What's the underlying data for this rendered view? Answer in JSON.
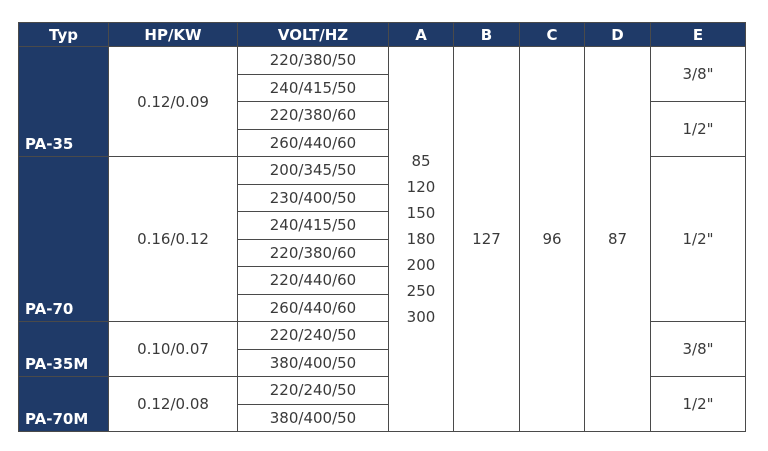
{
  "table": {
    "header": [
      "Typ",
      "HP/KW",
      "VOLT/HZ",
      "A",
      "B",
      "C",
      "D",
      "E"
    ],
    "groups": [
      {
        "typ": "PA-35",
        "hp_kw": "0.12/0.09",
        "volt_hz": [
          "220/380/50",
          "240/415/50",
          "220/380/60",
          "260/440/60"
        ],
        "e": [
          "3/8\"",
          "1/2\""
        ]
      },
      {
        "typ": "PA-70",
        "hp_kw": "0.16/0.12",
        "volt_hz": [
          "200/345/50",
          "230/400/50",
          "240/415/50",
          "220/380/60",
          "220/440/60",
          "260/440/60"
        ],
        "e": [
          "1/2\""
        ]
      },
      {
        "typ": "PA-35M",
        "hp_kw": "0.10/0.07",
        "volt_hz": [
          "220/240/50",
          "380/400/50"
        ],
        "e": [
          "3/8\""
        ]
      },
      {
        "typ": "PA-70M",
        "hp_kw": "0.12/0.08",
        "volt_hz": [
          "220/240/50",
          "380/400/50"
        ],
        "e": [
          "1/2\""
        ]
      }
    ],
    "a": [
      85,
      120,
      150,
      180,
      200,
      250,
      300
    ],
    "b": 127,
    "c": 96,
    "d": 87
  }
}
